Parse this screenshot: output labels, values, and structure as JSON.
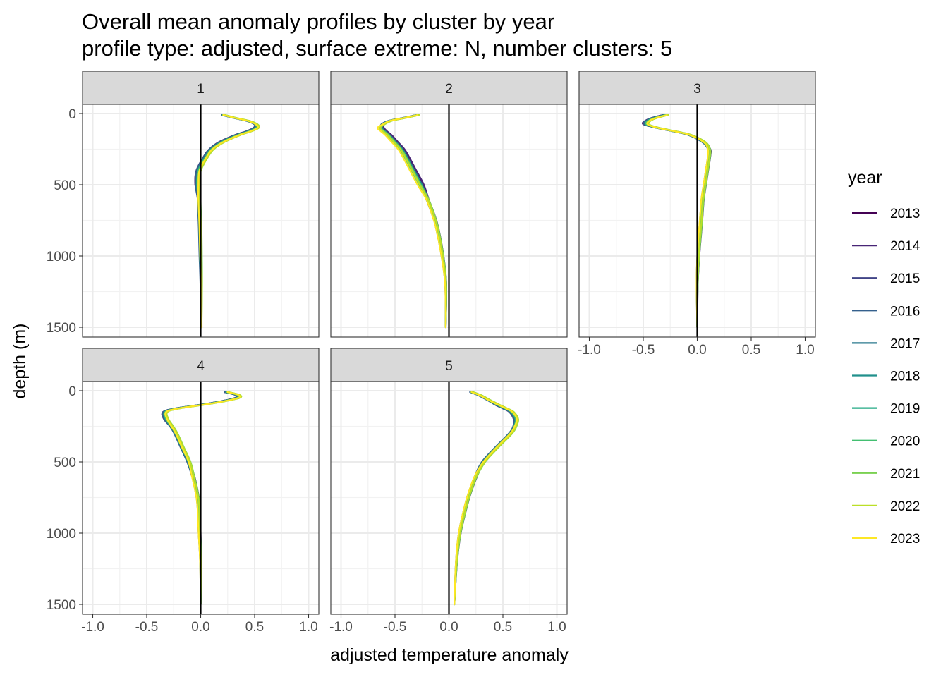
{
  "chart_data": {
    "type": "line",
    "title": "Overall mean anomaly profiles by cluster by year",
    "subtitle": "profile type: adjusted, surface extreme: N, number clusters: 5",
    "xlabel": "adjusted temperature anomaly",
    "ylabel": "depth (m)",
    "xlim": [
      -1.0,
      1.0
    ],
    "ylim": [
      1500,
      0
    ],
    "y_reversed": true,
    "x_ticks": [
      "-1.0",
      "-0.5",
      "0.0",
      "0.5",
      "1.0"
    ],
    "y_ticks": [
      "0",
      "500",
      "1000",
      "1500"
    ],
    "grid": true,
    "reference_line": {
      "x": 0,
      "color": "#000000"
    },
    "legend": {
      "title": "year",
      "placement": "right",
      "entries": [
        {
          "name": "2013",
          "color": "#440154"
        },
        {
          "name": "2014",
          "color": "#482576"
        },
        {
          "name": "2015",
          "color": "#414487"
        },
        {
          "name": "2016",
          "color": "#35608D"
        },
        {
          "name": "2017",
          "color": "#2A788E"
        },
        {
          "name": "2018",
          "color": "#21908C"
        },
        {
          "name": "2019",
          "color": "#22A884"
        },
        {
          "name": "2020",
          "color": "#43BF71"
        },
        {
          "name": "2021",
          "color": "#7AD151"
        },
        {
          "name": "2022",
          "color": "#BBDF27"
        },
        {
          "name": "2023",
          "color": "#FDE725"
        }
      ]
    },
    "depths": [
      10,
      30,
      50,
      75,
      100,
      125,
      150,
      200,
      250,
      300,
      400,
      500,
      600,
      700,
      800,
      1000,
      1200,
      1500
    ],
    "facets": [
      {
        "label": "1",
        "base": [
          0.2,
          0.3,
          0.42,
          0.5,
          0.52,
          0.45,
          0.35,
          0.2,
          0.1,
          0.05,
          -0.02,
          -0.03,
          -0.02,
          -0.015,
          -0.01,
          -0.005,
          0.0,
          0.0
        ],
        "year_offset": {
          "2013": [
            0.0,
            -0.03,
            -0.02,
            0.0
          ],
          "2023": [
            0.02,
            0.02,
            0.02,
            0.01
          ]
        }
      },
      {
        "label": "2",
        "base": [
          -0.3,
          -0.42,
          -0.55,
          -0.62,
          -0.63,
          -0.6,
          -0.56,
          -0.5,
          -0.44,
          -0.4,
          -0.33,
          -0.26,
          -0.2,
          -0.15,
          -0.11,
          -0.06,
          -0.03,
          -0.03
        ],
        "year_offset": {
          "2013": [
            0.0,
            0.02,
            0.02,
            0.0
          ],
          "2023": [
            0.02,
            -0.02,
            -0.02,
            0.0
          ]
        }
      },
      {
        "label": "3",
        "base": [
          -0.32,
          -0.42,
          -0.48,
          -0.5,
          -0.38,
          -0.22,
          -0.08,
          0.05,
          0.11,
          0.11,
          0.09,
          0.07,
          0.05,
          0.04,
          0.03,
          0.01,
          0.0,
          0.0
        ],
        "year_offset": {
          "2013": [
            0.0,
            0.0,
            0.0,
            0.0
          ],
          "2023": [
            0.05,
            0.02,
            0.0,
            0.0
          ]
        }
      },
      {
        "label": "4",
        "base": [
          0.22,
          0.32,
          0.32,
          0.18,
          0.0,
          -0.22,
          -0.33,
          -0.32,
          -0.28,
          -0.24,
          -0.18,
          -0.12,
          -0.07,
          -0.04,
          -0.02,
          -0.01,
          0.0,
          0.0
        ],
        "year_offset": {
          "2013": [
            0.0,
            -0.02,
            0.0,
            0.0
          ],
          "2023": [
            0.04,
            0.02,
            0.02,
            0.0
          ]
        }
      },
      {
        "label": "5",
        "base": [
          0.2,
          0.27,
          0.32,
          0.38,
          0.45,
          0.52,
          0.58,
          0.62,
          0.62,
          0.58,
          0.45,
          0.33,
          0.25,
          0.2,
          0.16,
          0.1,
          0.07,
          0.05
        ],
        "year_offset": {
          "2013": [
            0.0,
            -0.02,
            -0.02,
            0.0
          ],
          "2023": [
            0.02,
            0.02,
            0.0,
            0.0
          ]
        }
      }
    ]
  }
}
